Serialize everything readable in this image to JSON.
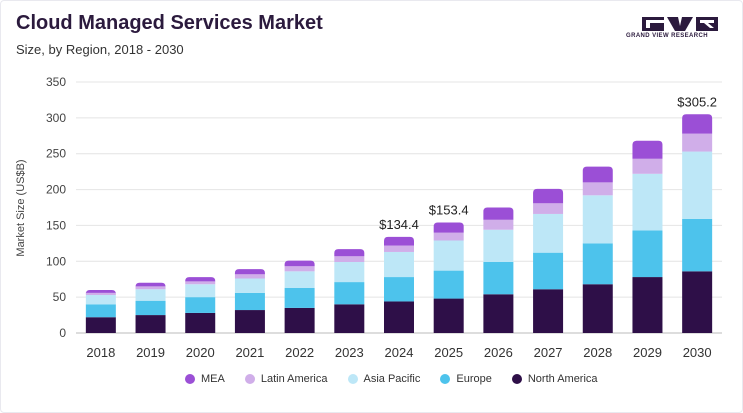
{
  "header": {
    "title": "Cloud Managed Services Market",
    "subtitle": "Size, by Region, 2018 - 2030",
    "logo_text": "GRAND VIEW RESEARCH"
  },
  "colors": {
    "MEA": "#9b4fd6",
    "Latin America": "#d0aee9",
    "Asia Pacific": "#bde7f7",
    "Europe": "#4dc3ec",
    "North America": "#2e0f48",
    "grid": "#e4e4e4",
    "logo": "#2b1a3d"
  },
  "legend": [
    {
      "label": "MEA"
    },
    {
      "label": "Latin America"
    },
    {
      "label": "Asia Pacific"
    },
    {
      "label": "Europe"
    },
    {
      "label": "North America"
    }
  ],
  "chart_data": {
    "type": "bar",
    "stacked": true,
    "title": "Cloud Managed Services Market",
    "subtitle": "Size, by Region, 2018 - 2030",
    "xlabel": "",
    "ylabel": "Market Size (US$B)",
    "ylim": [
      0,
      350
    ],
    "yticks": [
      0,
      50,
      100,
      150,
      200,
      250,
      300,
      350
    ],
    "grid": true,
    "legend_position": "bottom",
    "categories": [
      "2018",
      "2019",
      "2020",
      "2021",
      "2022",
      "2023",
      "2024",
      "2025",
      "2026",
      "2027",
      "2028",
      "2029",
      "2030"
    ],
    "series": [
      {
        "name": "North America",
        "values": [
          22,
          25,
          28,
          32,
          35,
          40,
          44,
          48,
          54,
          61,
          68,
          78,
          86
        ]
      },
      {
        "name": "Europe",
        "values": [
          18,
          20,
          22,
          24,
          28,
          31,
          34,
          39,
          45,
          51,
          57,
          65,
          73
        ]
      },
      {
        "name": "Asia Pacific",
        "values": [
          13,
          16,
          18,
          20,
          23,
          28,
          35,
          42,
          45,
          54,
          67,
          79,
          94
        ]
      },
      {
        "name": "Latin America",
        "values": [
          3,
          4,
          4,
          6,
          7,
          8,
          9,
          11,
          14,
          15,
          18,
          21,
          25
        ]
      },
      {
        "name": "MEA",
        "values": [
          4,
          5,
          6,
          7,
          8,
          10,
          12,
          14,
          17,
          20,
          22,
          25,
          27
        ]
      }
    ],
    "annotations": [
      {
        "category": "2024",
        "label": "$134.4",
        "value": 134.4
      },
      {
        "category": "2025",
        "label": "$153.4",
        "value": 153.4
      },
      {
        "category": "2030",
        "label": "$305.2",
        "value": 305.2
      }
    ]
  }
}
